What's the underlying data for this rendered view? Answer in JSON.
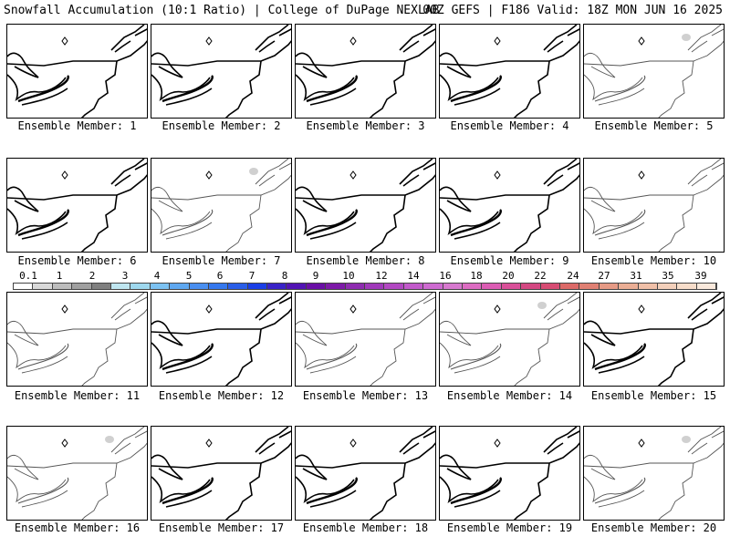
{
  "header": {
    "left": "Snowfall Accumulation (10:1 Ratio) | College of DuPage NEXLAB",
    "right": "00Z GEFS | F186 Valid: 18Z MON JUN 16 2025"
  },
  "panels": [
    {
      "label": "Ensemble Member: 1",
      "style": "bold",
      "blob": false
    },
    {
      "label": "Ensemble Member: 2",
      "style": "bold",
      "blob": false
    },
    {
      "label": "Ensemble Member: 3",
      "style": "bold",
      "blob": false
    },
    {
      "label": "Ensemble Member: 4",
      "style": "bold",
      "blob": false
    },
    {
      "label": "Ensemble Member: 5",
      "style": "thin",
      "blob": true
    },
    {
      "label": "Ensemble Member: 6",
      "style": "bold",
      "blob": false
    },
    {
      "label": "Ensemble Member: 7",
      "style": "thin",
      "blob": true
    },
    {
      "label": "Ensemble Member: 8",
      "style": "bold",
      "blob": false
    },
    {
      "label": "Ensemble Member: 9",
      "style": "bold",
      "blob": false
    },
    {
      "label": "Ensemble Member: 10",
      "style": "thin",
      "blob": false
    },
    {
      "label": "Ensemble Member: 11",
      "style": "thin",
      "blob": false
    },
    {
      "label": "Ensemble Member: 12",
      "style": "bold",
      "blob": false
    },
    {
      "label": "Ensemble Member: 13",
      "style": "thin",
      "blob": false
    },
    {
      "label": "Ensemble Member: 14",
      "style": "thin",
      "blob": true
    },
    {
      "label": "Ensemble Member: 15",
      "style": "bold",
      "blob": false
    },
    {
      "label": "Ensemble Member: 16",
      "style": "thin",
      "blob": true
    },
    {
      "label": "Ensemble Member: 17",
      "style": "bold",
      "blob": false
    },
    {
      "label": "Ensemble Member: 18",
      "style": "bold",
      "blob": false
    },
    {
      "label": "Ensemble Member: 19",
      "style": "bold",
      "blob": false
    },
    {
      "label": "Ensemble Member: 20",
      "style": "thin",
      "blob": true
    }
  ],
  "colorbar": {
    "labels": [
      "0.1",
      "1",
      "2",
      "3",
      "4",
      "5",
      "6",
      "7",
      "8",
      "9",
      "10",
      "12",
      "14",
      "16",
      "18",
      "20",
      "22",
      "24",
      "27",
      "31",
      "35",
      "39"
    ],
    "colors": [
      "#ffffff",
      "#d9d9d9",
      "#bdbdbd",
      "#a0a0a0",
      "#7f7f7f",
      "#bfe6f0",
      "#9ed8ee",
      "#7cc2f2",
      "#5fa8f0",
      "#4a8ff0",
      "#3578ee",
      "#2a5ee8",
      "#1b3fe6",
      "#3a23c8",
      "#5214b4",
      "#6a0fa6",
      "#7d1aa8",
      "#8e2cb0",
      "#a039ba",
      "#b248c2",
      "#c25acb",
      "#ce6bd1",
      "#d779cf",
      "#dc6cc2",
      "#dc5db4",
      "#d95099",
      "#d44882",
      "#d74c73",
      "#dc6a68",
      "#e08073",
      "#e69a85",
      "#ebae95",
      "#f0c0a8",
      "#f3d0bb",
      "#f7ddca",
      "#fae9dc"
    ]
  }
}
